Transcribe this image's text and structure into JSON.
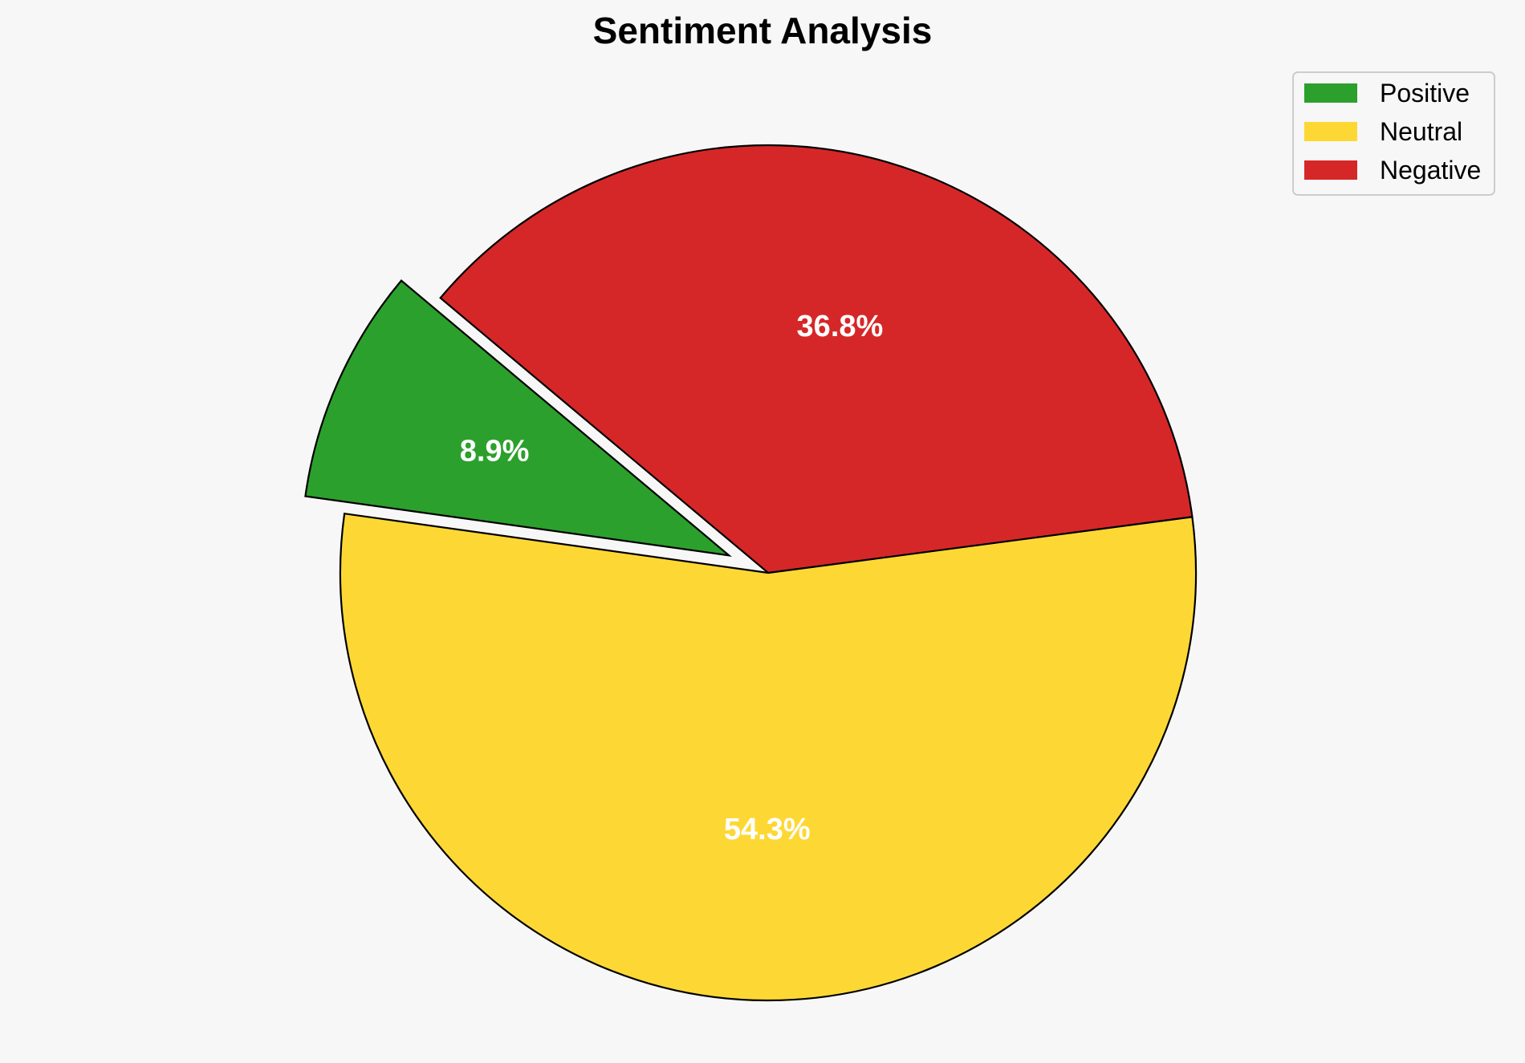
{
  "chart_data": {
    "type": "pie",
    "title": "Sentiment Analysis",
    "categories": [
      "Positive",
      "Neutral",
      "Negative"
    ],
    "values": [
      8.9,
      54.3,
      36.8
    ],
    "value_labels": [
      "8.9%",
      "54.3%",
      "36.8%"
    ],
    "colors": [
      "#2ca02c",
      "#fdd835",
      "#d62728"
    ],
    "exploded": [
      true,
      false,
      false
    ],
    "legend_position": "top-right",
    "edge_color": "#000000",
    "label_color": "#ffffff",
    "background": "#f7f7f7"
  }
}
